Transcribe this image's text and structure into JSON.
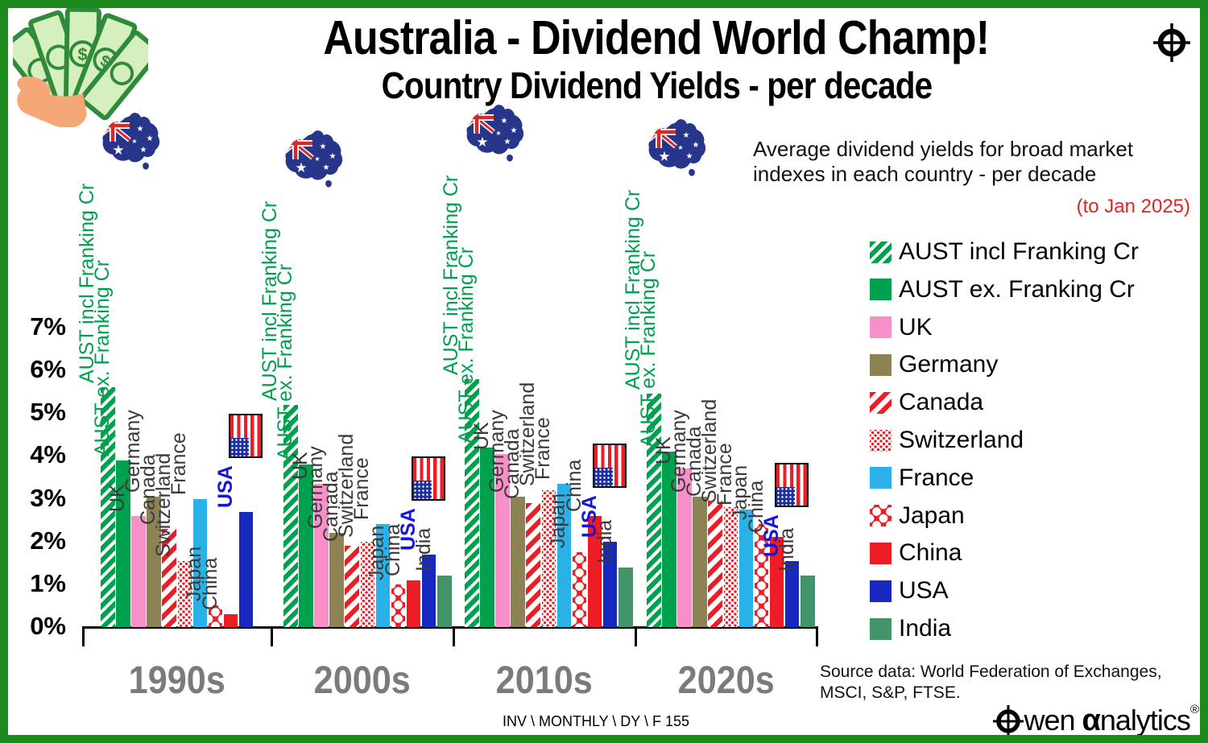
{
  "header": {
    "title": "Australia - Dividend World Champ!",
    "subtitle": "Country Dividend Yields - per decade",
    "note_line1": "Average dividend yields for broad market",
    "note_line2": "indexes in each country - per decade",
    "date_note": "(to Jan 2025)"
  },
  "icons": [
    "money-icon",
    "crosshair-logo-icon",
    "australia-flag-map-icon",
    "usa-flag-icon"
  ],
  "colors": {
    "border_green": "#1c8a1c",
    "aust_green": "#00A14E",
    "uk_pink": "#F78FC8",
    "germany_olive": "#8C8254",
    "red": "#EE1C25",
    "france_blue": "#2AB2E8",
    "usa_blue": "#1628BD",
    "india_green": "#42946A",
    "decade_gray": "#7b7b7b",
    "date_note_red": "#e02424"
  },
  "chart_data": {
    "type": "bar",
    "title": "Australia - Dividend World Champ!",
    "subtitle": "Country Dividend Yields - per decade",
    "unit": "%",
    "ylim": [
      0,
      7
    ],
    "y_ticks": [
      "0%",
      "1%",
      "2%",
      "3%",
      "4%",
      "5%",
      "6%",
      "7%"
    ],
    "grid": false,
    "legend_position": "right",
    "categories": [
      "1990s",
      "2000s",
      "2010s",
      "2020s"
    ],
    "series": [
      {
        "name": "AUST incl Franking Cr",
        "pattern": "green-hatch",
        "color": "#00A14E",
        "label_color": "#00A14E",
        "values": [
          5.6,
          5.2,
          5.8,
          5.45
        ]
      },
      {
        "name": "AUST ex. Franking Cr",
        "pattern": "solid",
        "color": "#00A14E",
        "label_color": "#00A14E",
        "values": [
          3.9,
          3.8,
          4.2,
          4.1
        ]
      },
      {
        "name": "UK",
        "pattern": "solid",
        "color": "#F78FC8",
        "values": [
          2.6,
          3.35,
          4.05,
          3.7
        ]
      },
      {
        "name": "Germany",
        "pattern": "solid",
        "color": "#8C8254",
        "values": [
          3.05,
          2.2,
          3.05,
          3.05
        ]
      },
      {
        "name": "Canada",
        "pattern": "red-stripe",
        "color": "#EE1C25",
        "values": [
          2.3,
          1.9,
          2.9,
          2.95
        ]
      },
      {
        "name": "Switzerland",
        "pattern": "red-dot",
        "color": "#EE1C25",
        "values": [
          1.55,
          2.0,
          3.2,
          2.8
        ]
      },
      {
        "name": "France",
        "pattern": "solid",
        "color": "#2AB2E8",
        "values": [
          3.0,
          2.4,
          3.35,
          2.75
        ]
      },
      {
        "name": "Japan",
        "pattern": "red-blob",
        "color": "#EE1C25",
        "values": [
          0.5,
          1.0,
          1.75,
          2.4
        ]
      },
      {
        "name": "China",
        "pattern": "solid",
        "color": "#EE1C25",
        "values": [
          0.3,
          1.1,
          2.6,
          2.1
        ]
      },
      {
        "name": "USA",
        "pattern": "solid",
        "color": "#1628BD",
        "label_color": "#1515E0",
        "values": [
          2.7,
          1.7,
          2.0,
          1.55
        ]
      },
      {
        "name": "India",
        "pattern": "solid",
        "color": "#42946A",
        "values": [
          null,
          1.2,
          1.4,
          1.2
        ]
      }
    ]
  },
  "footer": {
    "source_line1": "Source data: World Federation of Exchanges,",
    "source_line2": "MSCI, S&P, FTSE.",
    "code": "INV \\ MONTHLY \\ DY \\ F 155",
    "brand_pre": "wen ",
    "brand_alpha": "α",
    "brand_post": "nalytics",
    "brand_reg": "®"
  }
}
